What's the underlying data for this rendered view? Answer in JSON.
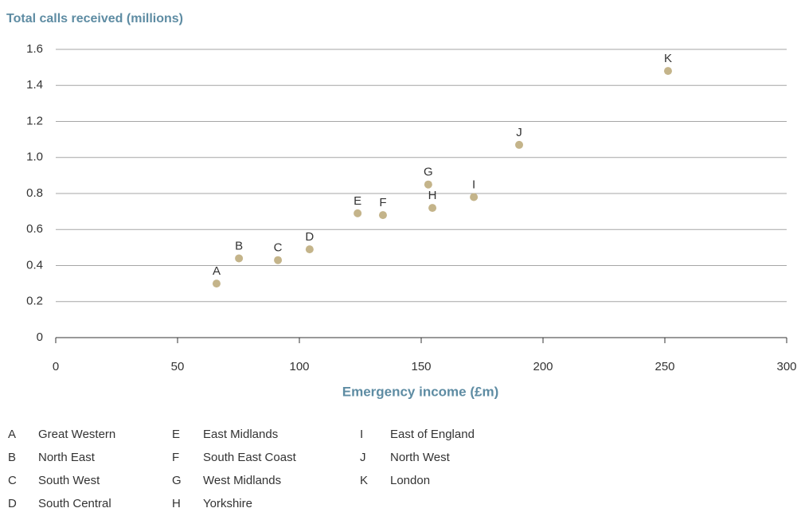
{
  "chart_data": {
    "type": "scatter",
    "title": "Total calls received (millions)",
    "x_label": "Emergency income (£m)",
    "x": [
      66.0,
      75.2,
      91.2,
      104.2,
      123.9,
      134.3,
      152.9,
      154.6,
      171.6,
      190.2,
      251.3
    ],
    "values": [
      0.3,
      0.44,
      0.43,
      0.49,
      0.69,
      0.68,
      0.85,
      0.72,
      0.78,
      1.07,
      1.48
    ],
    "point_labels": [
      "A",
      "B",
      "C",
      "D",
      "E",
      "F",
      "G",
      "H",
      "I",
      "J",
      "K"
    ],
    "color": "#c4b48a",
    "xlim": [
      0,
      300
    ],
    "xticks": [
      0,
      50,
      100,
      150,
      200,
      250,
      300
    ],
    "ylim": [
      0,
      1.6
    ],
    "yticks": [
      0,
      0.2,
      0.4,
      0.6,
      0.8,
      {
        "value": 1,
        "label": "1.0"
      },
      1.2,
      1.4,
      1.6
    ],
    "grid": true,
    "key": [
      {
        "letter": "A",
        "name": "Great Western"
      },
      {
        "letter": "B",
        "name": "North East"
      },
      {
        "letter": "C",
        "name": "South West"
      },
      {
        "letter": "D",
        "name": "South Central"
      },
      {
        "letter": "E",
        "name": "East Midlands"
      },
      {
        "letter": "F",
        "name": "South East Coast"
      },
      {
        "letter": "G",
        "name": "West Midlands"
      },
      {
        "letter": "H",
        "name": "Yorkshire"
      },
      {
        "letter": "I",
        "name": "East of England"
      },
      {
        "letter": "J",
        "name": "North West"
      },
      {
        "letter": "K",
        "name": "London"
      }
    ]
  }
}
